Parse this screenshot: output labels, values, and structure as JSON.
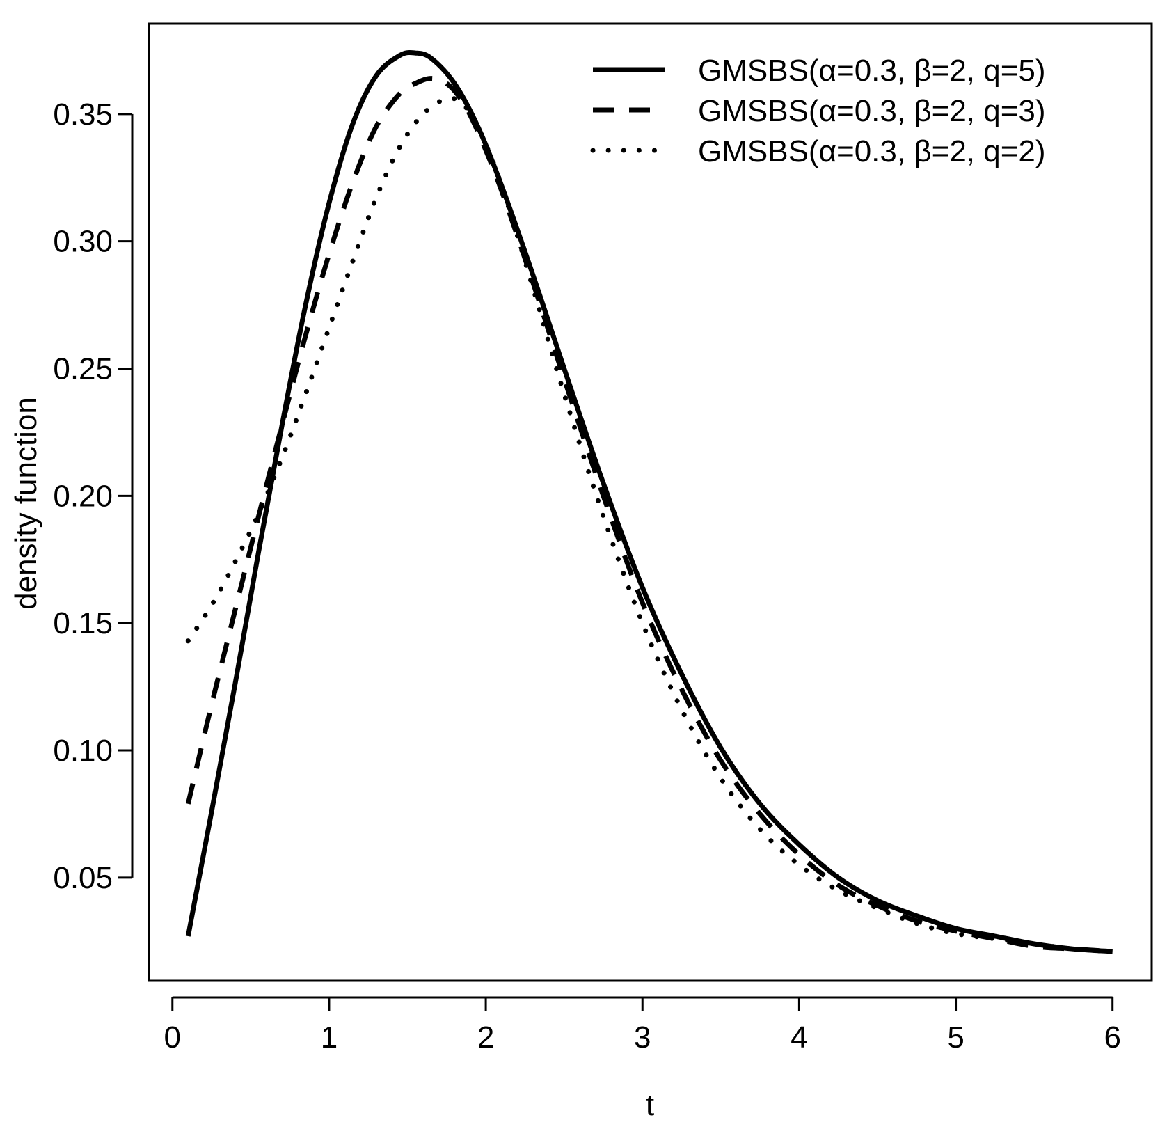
{
  "chart_data": {
    "type": "line",
    "title": "",
    "xlabel": "t",
    "ylabel": "density function",
    "xlim": [
      -0.15,
      6.25
    ],
    "ylim": [
      0.0095,
      0.3855
    ],
    "xticks": [
      0,
      1,
      2,
      3,
      4,
      5,
      6
    ],
    "xtick_labels": [
      "0",
      "1",
      "2",
      "3",
      "4",
      "5",
      "6"
    ],
    "yticks": [
      0.05,
      0.1,
      0.15,
      0.2,
      0.25,
      0.3,
      0.35
    ],
    "ytick_labels": [
      "0.05",
      "0.10",
      "0.15",
      "0.20",
      "0.25",
      "0.30",
      "0.35"
    ],
    "legend_position": "top-right",
    "colors": {
      "line": "#000000",
      "background": "#ffffff"
    },
    "series": [
      {
        "name": "GMSBS(α=0.3, β=2, q=5)",
        "style": "solid",
        "x": [
          0.1,
          0.25,
          0.4,
          0.55,
          0.7,
          0.85,
          1.0,
          1.15,
          1.3,
          1.45,
          1.55,
          1.65,
          1.8,
          1.95,
          2.1,
          2.3,
          2.5,
          2.75,
          3.0,
          3.25,
          3.5,
          3.75,
          4.0,
          4.25,
          4.5,
          4.75,
          5.0,
          5.25,
          5.5,
          5.75,
          6.0
        ],
        "y": [
          0.027,
          0.076,
          0.126,
          0.178,
          0.228,
          0.275,
          0.315,
          0.346,
          0.365,
          0.373,
          0.374,
          0.372,
          0.362,
          0.345,
          0.322,
          0.287,
          0.25,
          0.205,
          0.164,
          0.13,
          0.101,
          0.079,
          0.063,
          0.05,
          0.041,
          0.035,
          0.03,
          0.027,
          0.024,
          0.022,
          0.021
        ]
      },
      {
        "name": "GMSBS(α=0.3, β=2, q=3)",
        "style": "dashed",
        "x": [
          0.1,
          0.25,
          0.4,
          0.55,
          0.7,
          0.85,
          1.0,
          1.15,
          1.3,
          1.45,
          1.55,
          1.65,
          1.75,
          1.85,
          1.95,
          2.1,
          2.3,
          2.5,
          2.75,
          3.0,
          3.25,
          3.5,
          3.75,
          4.0,
          4.25,
          4.5,
          4.75,
          5.0,
          5.25,
          5.5,
          5.75,
          6.0
        ],
        "y": [
          0.079,
          0.118,
          0.155,
          0.192,
          0.228,
          0.263,
          0.295,
          0.323,
          0.345,
          0.358,
          0.362,
          0.364,
          0.362,
          0.355,
          0.343,
          0.32,
          0.284,
          0.246,
          0.2,
          0.158,
          0.124,
          0.096,
          0.075,
          0.059,
          0.047,
          0.039,
          0.033,
          0.029,
          0.026,
          0.023,
          0.022,
          0.021
        ]
      },
      {
        "name": "GMSBS(α=0.3, β=2, q=2)",
        "style": "dotted",
        "x": [
          0.1,
          0.25,
          0.4,
          0.55,
          0.7,
          0.85,
          1.0,
          1.15,
          1.3,
          1.45,
          1.6,
          1.75,
          1.85,
          1.95,
          2.1,
          2.3,
          2.5,
          2.75,
          3.0,
          3.25,
          3.5,
          3.75,
          4.0,
          4.25,
          4.5,
          4.75,
          5.0,
          5.25,
          5.5,
          5.75,
          6.0
        ],
        "y": [
          0.143,
          0.157,
          0.174,
          0.193,
          0.215,
          0.24,
          0.266,
          0.292,
          0.317,
          0.337,
          0.35,
          0.356,
          0.354,
          0.345,
          0.322,
          0.282,
          0.24,
          0.192,
          0.15,
          0.116,
          0.089,
          0.069,
          0.055,
          0.045,
          0.038,
          0.032,
          0.028,
          0.026,
          0.024,
          0.022,
          0.021
        ]
      }
    ]
  }
}
